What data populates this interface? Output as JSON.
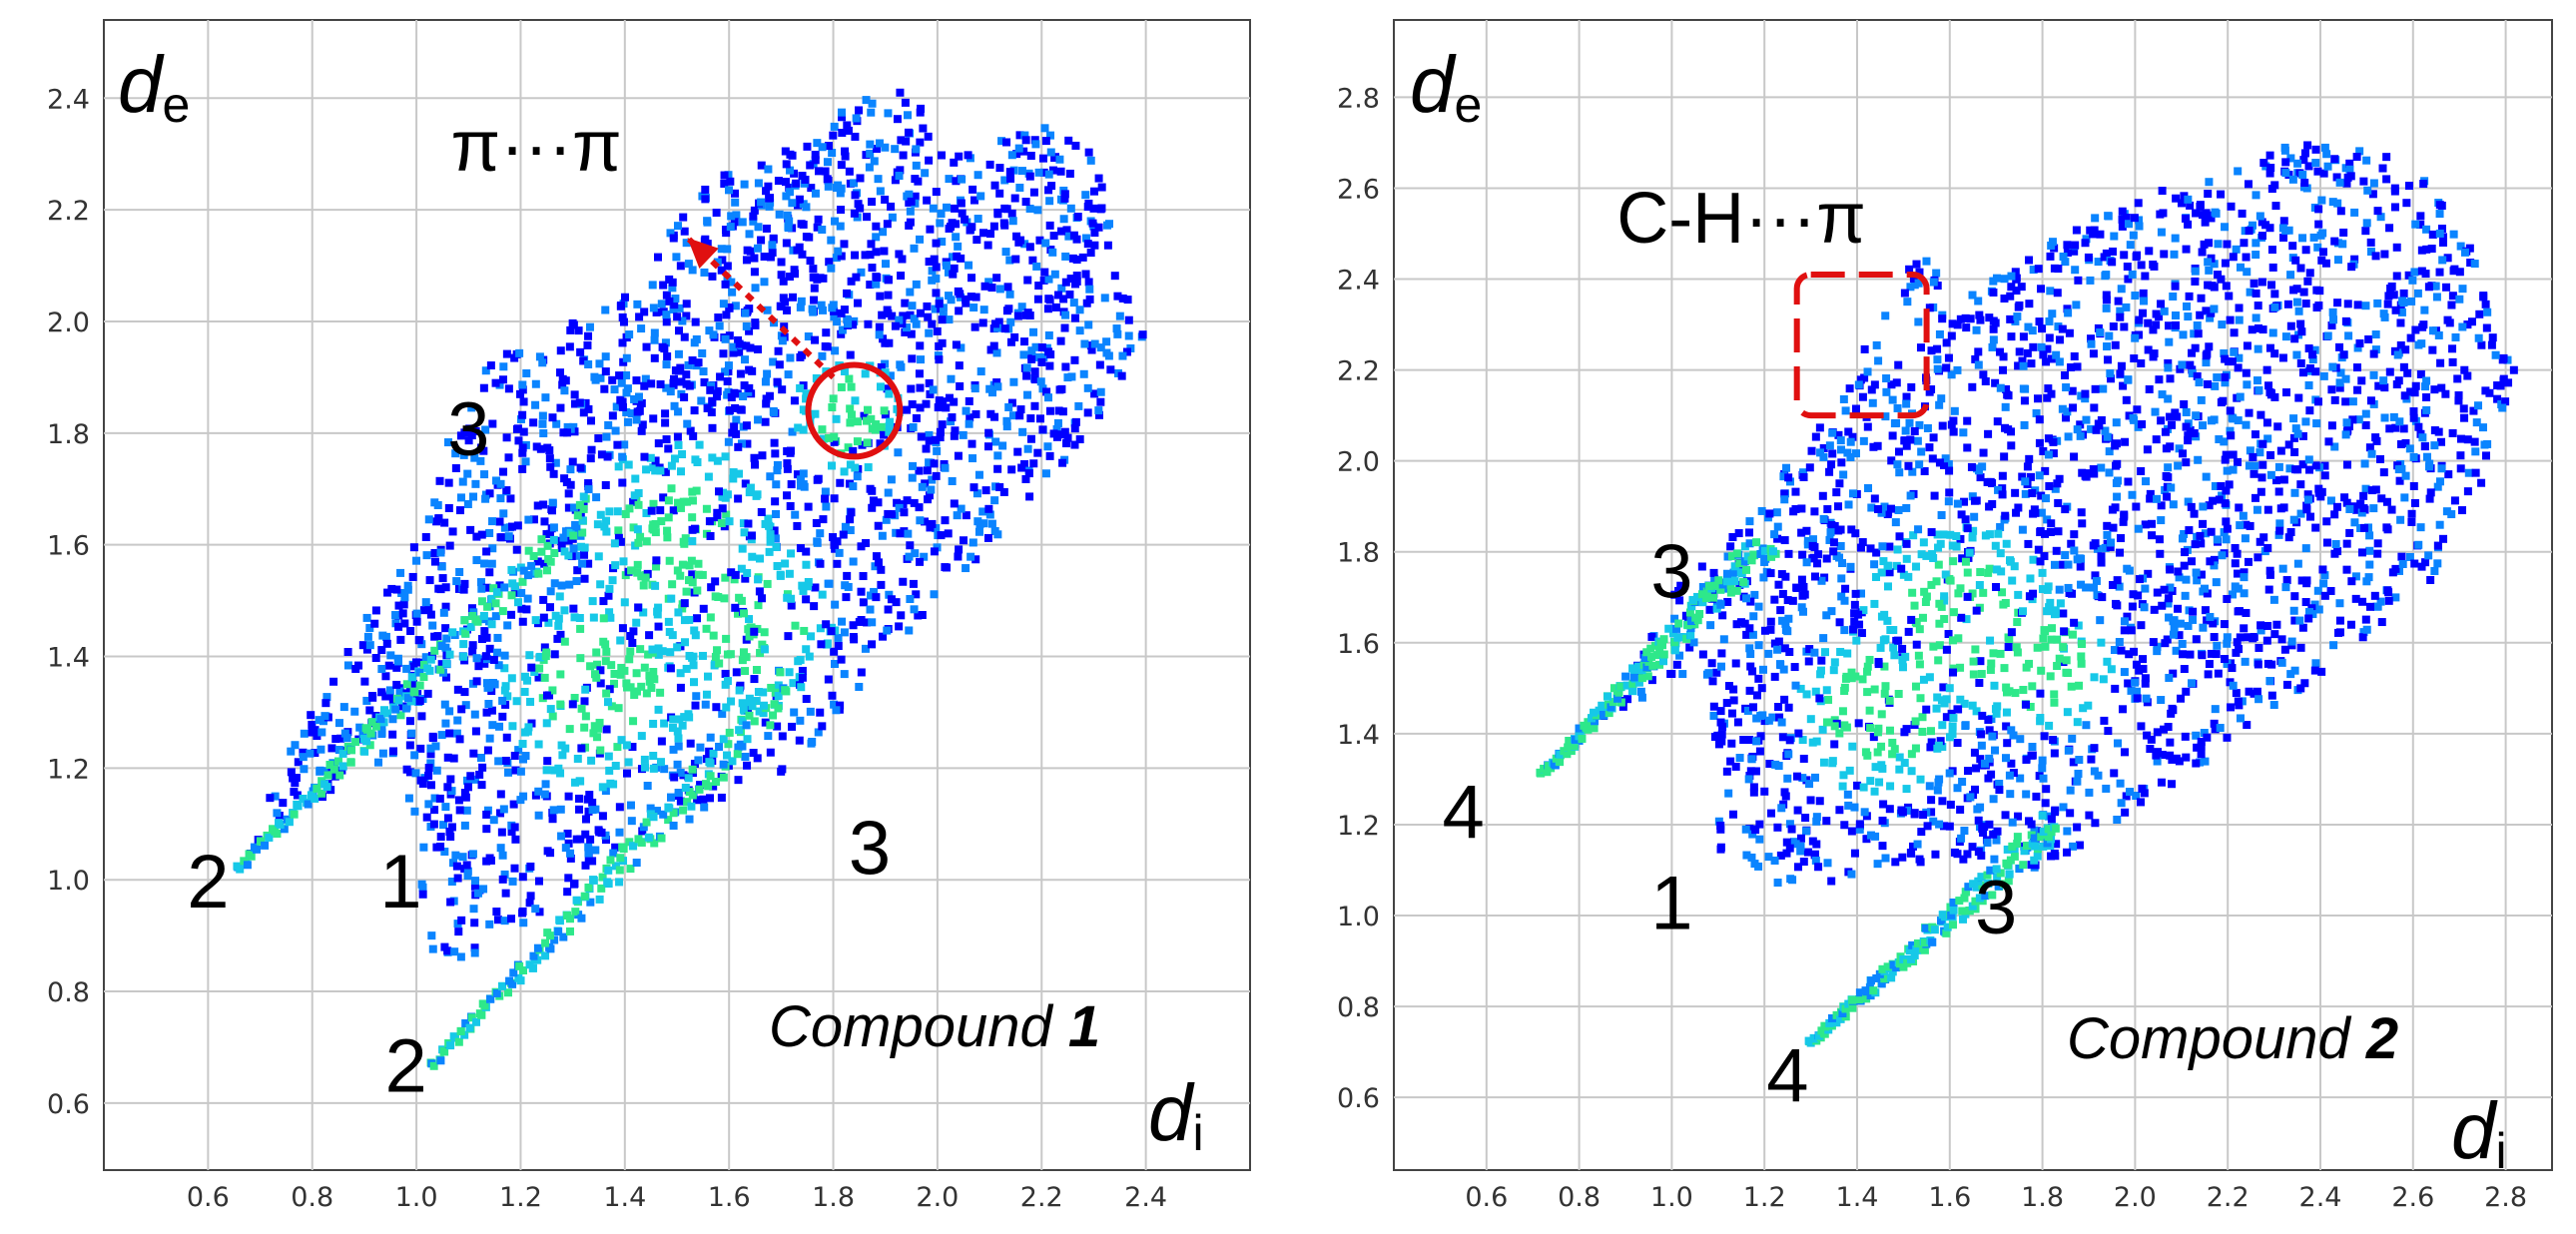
{
  "chart_data": [
    {
      "type": "scatter",
      "subtype": "hirshfeld-2d-fingerprint-plot",
      "compound_label": "Compound",
      "compound_number": "1",
      "xlabel": "d",
      "xlabel_sub": "i",
      "ylabel": "d",
      "ylabel_sub": "e",
      "xlim": [
        0.4,
        2.6
      ],
      "ylim": [
        0.48,
        2.54
      ],
      "x_ticks": [
        "0.6",
        "0.8",
        "1.0",
        "1.2",
        "1.4",
        "1.6",
        "1.8",
        "2.0",
        "2.2",
        "2.4"
      ],
      "y_ticks": [
        "0.6",
        "0.8",
        "1.0",
        "1.2",
        "1.4",
        "1.6",
        "1.8",
        "2.0",
        "2.2",
        "2.4"
      ],
      "grid": true,
      "density_colors": [
        "#0000ff",
        "#0a84ff",
        "#16c8e8",
        "#2ee88a"
      ],
      "highlight_color": "#e01010",
      "envelope": [
        [
          0.66,
          1.02
        ],
        [
          0.72,
          1.08
        ],
        [
          0.8,
          1.13
        ],
        [
          0.88,
          1.2
        ],
        [
          0.95,
          1.2
        ],
        [
          1.0,
          1.09
        ],
        [
          1.02,
          0.9
        ],
        [
          1.03,
          0.82
        ],
        [
          1.18,
          0.9
        ],
        [
          1.35,
          1.02
        ],
        [
          1.55,
          1.12
        ],
        [
          1.72,
          1.2
        ],
        [
          1.88,
          1.38
        ],
        [
          2.05,
          1.55
        ],
        [
          2.2,
          1.7
        ],
        [
          2.33,
          1.85
        ],
        [
          2.4,
          1.98
        ],
        [
          2.34,
          2.15
        ],
        [
          2.3,
          2.3
        ],
        [
          2.2,
          2.35
        ],
        [
          2.05,
          2.3
        ],
        [
          1.93,
          2.42
        ],
        [
          1.85,
          2.4
        ],
        [
          1.7,
          2.3
        ],
        [
          1.55,
          2.25
        ],
        [
          1.4,
          2.05
        ],
        [
          1.22,
          1.97
        ],
        [
          1.1,
          1.9
        ],
        [
          1.05,
          1.75
        ],
        [
          0.96,
          1.55
        ],
        [
          0.84,
          1.38
        ],
        [
          0.74,
          1.2
        ]
      ],
      "wings": [
        {
          "from": [
            0.66,
            1.02
          ],
          "to": [
            1.35,
            1.68
          ],
          "width": 0.025
        },
        {
          "from": [
            1.03,
            0.67
          ],
          "to": [
            1.72,
            1.35
          ],
          "width": 0.025
        }
      ],
      "hotspots": [
        {
          "x": 1.83,
          "y": 1.83,
          "r": 0.07
        },
        {
          "x": 1.5,
          "y": 1.6,
          "r": 0.12
        },
        {
          "x": 1.35,
          "y": 1.35,
          "r": 0.12
        },
        {
          "x": 1.65,
          "y": 1.45,
          "r": 0.1
        }
      ],
      "region_labels": [
        {
          "text": "3",
          "x": 1.1,
          "y": 1.76
        },
        {
          "text": "3",
          "x": 1.87,
          "y": 1.01
        },
        {
          "text": "2",
          "x": 0.6,
          "y": 0.95
        },
        {
          "text": "1",
          "x": 0.97,
          "y": 0.95
        },
        {
          "text": "2",
          "x": 0.98,
          "y": 0.62
        }
      ],
      "annotations": [
        {
          "text": "π···π",
          "x": 1.23,
          "y": 2.27
        }
      ],
      "circle": {
        "x": 1.84,
        "y": 1.84,
        "r": 0.088
      },
      "arrow": {
        "from": [
          1.8,
          1.9
        ],
        "to": [
          1.52,
          2.15
        ]
      },
      "dashed_box": null,
      "seed": 11
    },
    {
      "type": "scatter",
      "subtype": "hirshfeld-2d-fingerprint-plot",
      "compound_label": "Compound",
      "compound_number": "2",
      "xlabel": "d",
      "xlabel_sub": "i",
      "ylabel": "d",
      "ylabel_sub": "e",
      "xlim": [
        0.4,
        2.9
      ],
      "ylim": [
        0.44,
        2.97
      ],
      "x_ticks": [
        "0.6",
        "0.8",
        "1.0",
        "1.2",
        "1.4",
        "1.6",
        "1.8",
        "2.0",
        "2.2",
        "2.4",
        "2.6",
        "2.8"
      ],
      "y_ticks": [
        "0.6",
        "0.8",
        "1.0",
        "1.2",
        "1.4",
        "1.6",
        "1.8",
        "2.0",
        "2.2",
        "2.4",
        "2.6",
        "2.8"
      ],
      "grid": true,
      "density_colors": [
        "#0000ff",
        "#0a84ff",
        "#16c8e8",
        "#2ee88a"
      ],
      "highlight_color": "#e01010",
      "envelope": [
        [
          0.72,
          1.31
        ],
        [
          0.9,
          1.45
        ],
        [
          1.07,
          1.55
        ],
        [
          1.1,
          1.35
        ],
        [
          1.1,
          1.12
        ],
        [
          1.2,
          1.07
        ],
        [
          1.45,
          1.08
        ],
        [
          1.65,
          1.12
        ],
        [
          1.8,
          1.1
        ],
        [
          1.95,
          1.2
        ],
        [
          2.1,
          1.3
        ],
        [
          2.3,
          1.45
        ],
        [
          2.5,
          1.6
        ],
        [
          2.62,
          1.7
        ],
        [
          2.75,
          1.95
        ],
        [
          2.82,
          2.2
        ],
        [
          2.75,
          2.45
        ],
        [
          2.6,
          2.65
        ],
        [
          2.4,
          2.72
        ],
        [
          2.2,
          2.65
        ],
        [
          2.0,
          2.58
        ],
        [
          1.8,
          2.48
        ],
        [
          1.62,
          2.35
        ],
        [
          1.55,
          2.5
        ],
        [
          1.45,
          2.32
        ],
        [
          1.35,
          2.1
        ],
        [
          1.28,
          2.05
        ],
        [
          1.15,
          1.85
        ],
        [
          1.05,
          1.78
        ],
        [
          0.85,
          1.45
        ]
      ],
      "wings": [
        {
          "from": [
            0.72,
            1.31
          ],
          "to": [
            1.2,
            1.82
          ],
          "width": 0.025
        },
        {
          "from": [
            1.3,
            0.72
          ],
          "to": [
            1.82,
            1.2
          ],
          "width": 0.025
        }
      ],
      "hotspots": [
        {
          "x": 1.62,
          "y": 1.65,
          "r": 0.14
        },
        {
          "x": 1.45,
          "y": 1.45,
          "r": 0.12
        },
        {
          "x": 1.8,
          "y": 1.55,
          "r": 0.1
        }
      ],
      "region_labels": [
        {
          "text": "3",
          "x": 1.0,
          "y": 1.7
        },
        {
          "text": "4",
          "x": 0.55,
          "y": 1.17
        },
        {
          "text": "1",
          "x": 1.0,
          "y": 0.97
        },
        {
          "text": "3",
          "x": 1.7,
          "y": 0.96
        },
        {
          "text": "4",
          "x": 1.25,
          "y": 0.59
        }
      ],
      "annotations": [
        {
          "text": "C-H···π",
          "x": 1.15,
          "y": 2.48
        }
      ],
      "circle": null,
      "arrow": null,
      "dashed_box": {
        "x0": 1.27,
        "y0": 2.1,
        "x1": 1.55,
        "y1": 2.41
      },
      "seed": 23
    }
  ]
}
